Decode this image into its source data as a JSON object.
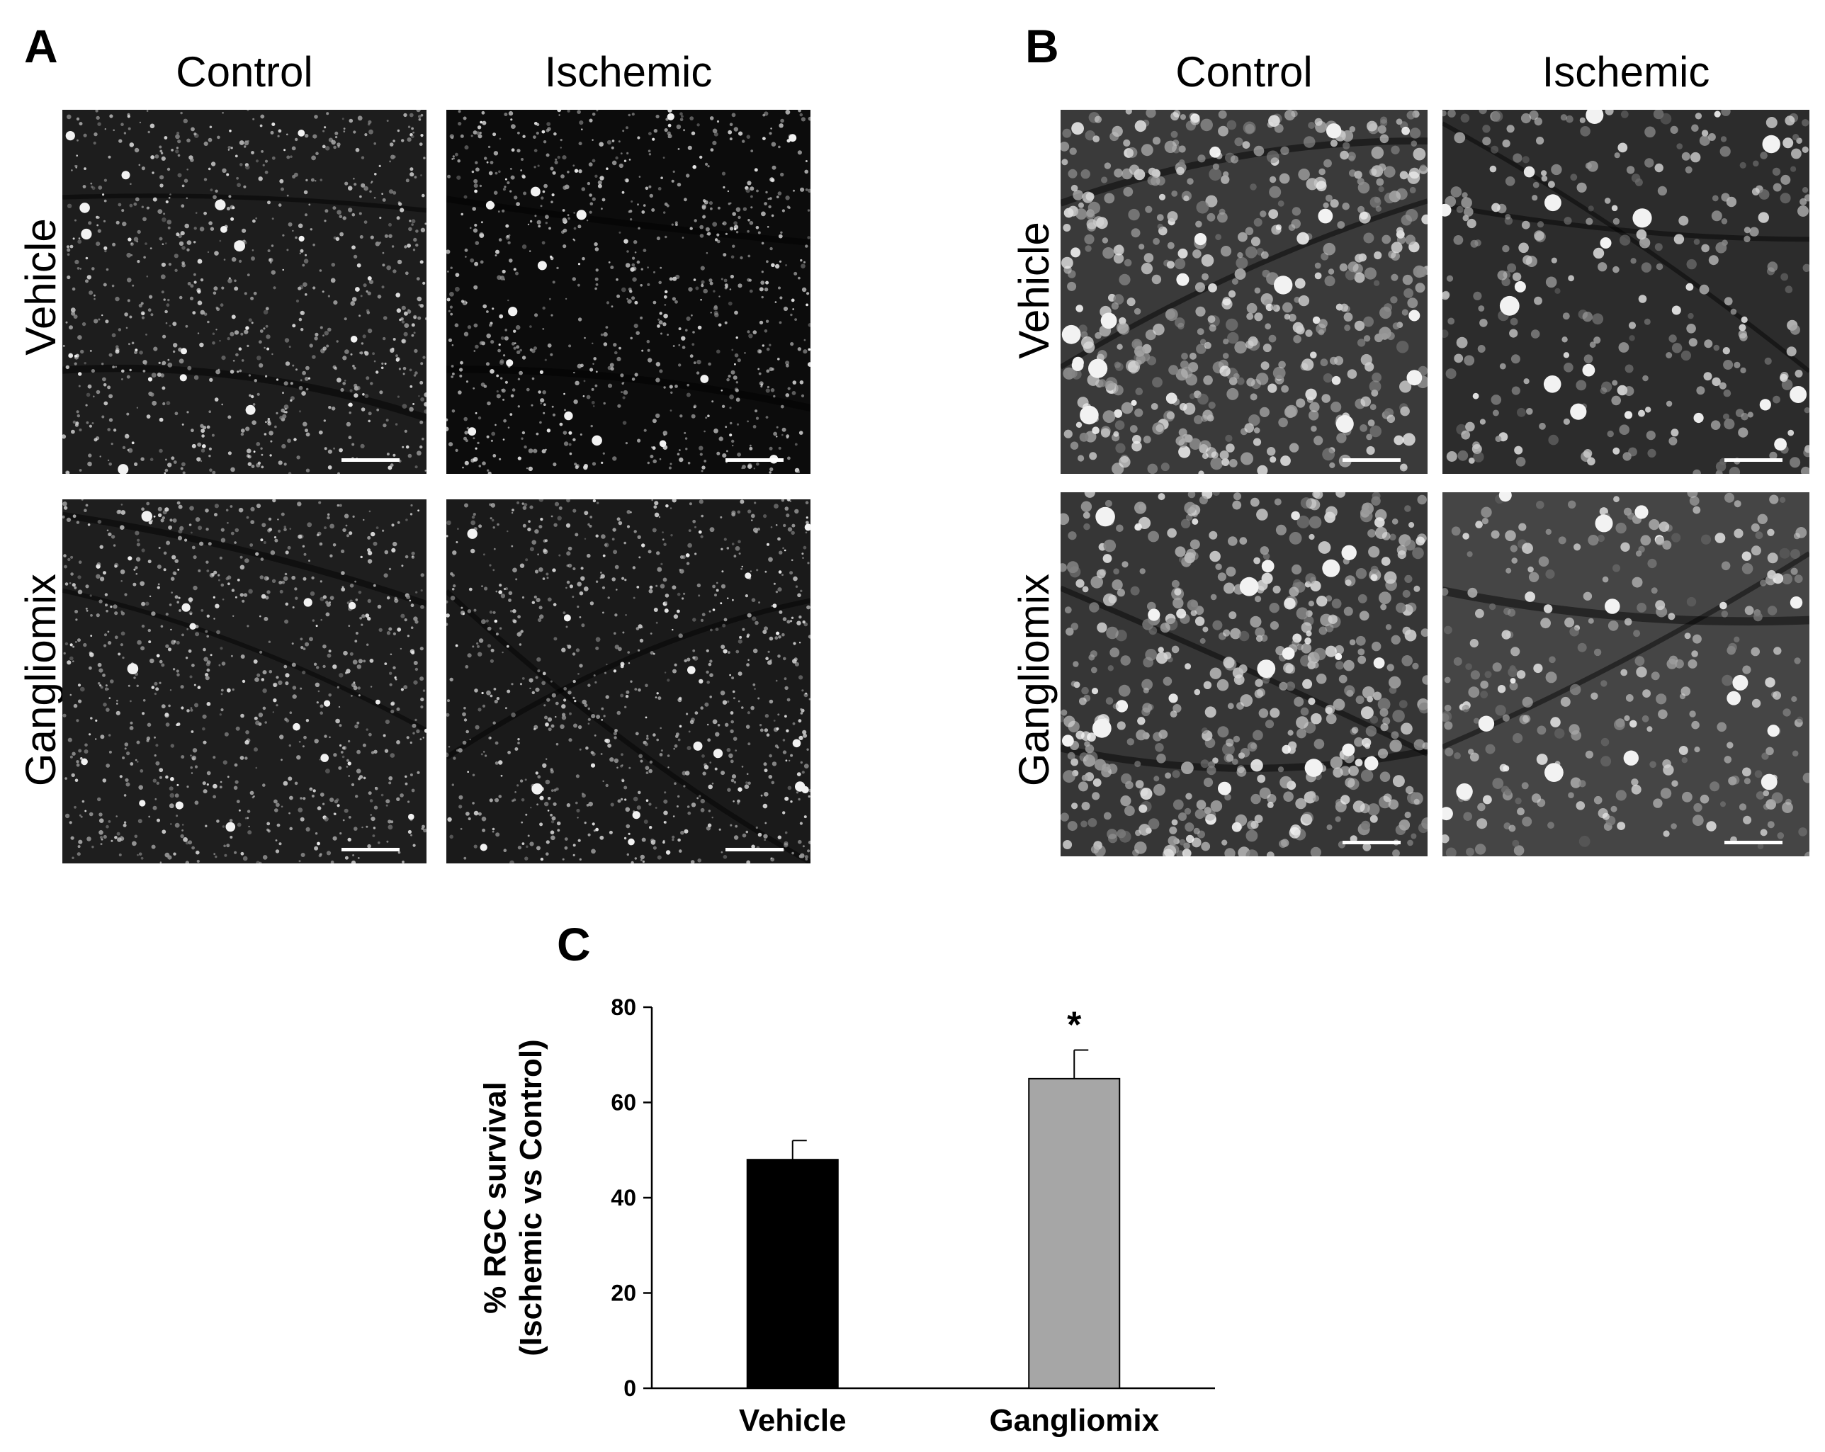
{
  "panel_a": {
    "letter": "A",
    "columns": [
      "Control",
      "Ischemic"
    ],
    "rows": [
      "Vehicle",
      "Gangliomix"
    ]
  },
  "panel_b": {
    "letter": "B",
    "columns": [
      "Control",
      "Ischemic"
    ],
    "rows": [
      "Vehicle",
      "Gangliomix"
    ]
  },
  "panel_c": {
    "letter": "C",
    "chart_data": {
      "type": "bar",
      "categories": [
        "Vehicle",
        "Gangliomix"
      ],
      "values": [
        48,
        65
      ],
      "errors": [
        4,
        6
      ],
      "bar_colors": [
        "#000000",
        "#a6a6a6"
      ],
      "significance": [
        "",
        "*"
      ],
      "ylabel_line1": "% RGC survival",
      "ylabel_line2": "(Ischemic vs Control)",
      "ylim": [
        0,
        80
      ],
      "yticks": [
        0,
        20,
        40,
        60,
        80
      ],
      "grid": false
    }
  }
}
